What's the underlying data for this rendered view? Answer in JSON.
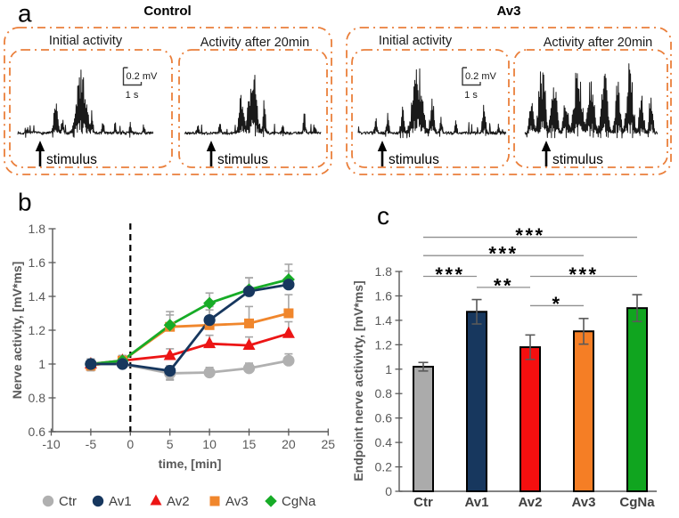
{
  "figure": {
    "background": "#ffffff",
    "panel_a": {
      "letter": "a",
      "box_color": "#EA7F3B",
      "trace_color": "#1a1a1a",
      "stimulus_label": "stimulus",
      "scalebar": {
        "v_label": "0.2 mV",
        "h_label": "1 s"
      },
      "groups": [
        {
          "title": "Control",
          "panels": [
            {
              "label": "Initial activity",
              "show_scalebar": true,
              "trace": {
                "seed": 7,
                "bursts": [
                  {
                    "c": 0.07,
                    "a": 0.1,
                    "w": 0.012
                  },
                  {
                    "c": 0.28,
                    "a": 0.42,
                    "w": 0.02
                  },
                  {
                    "c": 0.33,
                    "a": 0.3,
                    "w": 0.012
                  },
                  {
                    "c": 0.47,
                    "a": 1.0,
                    "w": 0.045
                  },
                  {
                    "c": 0.545,
                    "a": 0.34,
                    "w": 0.012
                  },
                  {
                    "c": 0.63,
                    "a": 0.22,
                    "w": 0.01
                  },
                  {
                    "c": 0.72,
                    "a": 0.16,
                    "w": 0.01
                  },
                  {
                    "c": 0.83,
                    "a": 0.18,
                    "w": 0.01
                  },
                  {
                    "c": 0.93,
                    "a": 0.16,
                    "w": 0.009
                  }
                ]
              }
            },
            {
              "label": "Activity after 20min",
              "show_scalebar": false,
              "trace": {
                "seed": 21,
                "bursts": [
                  {
                    "c": 0.1,
                    "a": 0.12,
                    "w": 0.01
                  },
                  {
                    "c": 0.26,
                    "a": 0.16,
                    "w": 0.01
                  },
                  {
                    "c": 0.42,
                    "a": 0.62,
                    "w": 0.025
                  },
                  {
                    "c": 0.5,
                    "a": 1.0,
                    "w": 0.038
                  },
                  {
                    "c": 0.585,
                    "a": 0.45,
                    "w": 0.014
                  },
                  {
                    "c": 0.72,
                    "a": 0.16,
                    "w": 0.01
                  },
                  {
                    "c": 0.88,
                    "a": 0.28,
                    "w": 0.012
                  },
                  {
                    "c": 0.96,
                    "a": 0.12,
                    "w": 0.008
                  }
                ]
              }
            }
          ]
        },
        {
          "title": "Av3",
          "panels": [
            {
              "label": "Initial activity",
              "show_scalebar": true,
              "trace": {
                "seed": 33,
                "bursts": [
                  {
                    "c": 0.12,
                    "a": 0.22,
                    "w": 0.012
                  },
                  {
                    "c": 0.2,
                    "a": 0.28,
                    "w": 0.012
                  },
                  {
                    "c": 0.3,
                    "a": 0.36,
                    "w": 0.015
                  },
                  {
                    "c": 0.4,
                    "a": 1.0,
                    "w": 0.042
                  },
                  {
                    "c": 0.5,
                    "a": 0.48,
                    "w": 0.018
                  },
                  {
                    "c": 0.56,
                    "a": 0.28,
                    "w": 0.012
                  },
                  {
                    "c": 0.66,
                    "a": 0.2,
                    "w": 0.01
                  },
                  {
                    "c": 0.85,
                    "a": 0.42,
                    "w": 0.014
                  },
                  {
                    "c": 0.95,
                    "a": 0.14,
                    "w": 0.008
                  }
                ]
              }
            },
            {
              "label": "Activity after 20min",
              "show_scalebar": false,
              "trace": {
                "seed": 55,
                "bursts": [
                  {
                    "c": 0.05,
                    "a": 0.52,
                    "w": 0.022
                  },
                  {
                    "c": 0.13,
                    "a": 0.95,
                    "w": 0.034
                  },
                  {
                    "c": 0.22,
                    "a": 0.74,
                    "w": 0.03
                  },
                  {
                    "c": 0.31,
                    "a": 0.58,
                    "w": 0.024
                  },
                  {
                    "c": 0.4,
                    "a": 1.0,
                    "w": 0.038
                  },
                  {
                    "c": 0.5,
                    "a": 0.8,
                    "w": 0.032
                  },
                  {
                    "c": 0.6,
                    "a": 0.85,
                    "w": 0.032
                  },
                  {
                    "c": 0.7,
                    "a": 0.7,
                    "w": 0.026
                  },
                  {
                    "c": 0.79,
                    "a": 0.95,
                    "w": 0.032
                  },
                  {
                    "c": 0.88,
                    "a": 0.58,
                    "w": 0.022
                  },
                  {
                    "c": 0.95,
                    "a": 0.62,
                    "w": 0.018
                  }
                ]
              }
            }
          ]
        }
      ]
    }
  },
  "chart_data": [
    {
      "id": "b",
      "type": "line",
      "panel_label": "b",
      "xlabel": "time, [min]",
      "ylabel": "Nerve activity, [mV*ms]",
      "xlim": [
        -10,
        25
      ],
      "ylim": [
        0.6,
        1.8
      ],
      "xticks": [
        -10,
        -5,
        0,
        5,
        10,
        15,
        20,
        25
      ],
      "xtick_labels": [
        "-10",
        "-5",
        "0",
        "5",
        "10",
        "15",
        "20",
        "25"
      ],
      "yticks": [
        0.6,
        0.8,
        1.0,
        1.2,
        1.4,
        1.6,
        1.8
      ],
      "ytick_labels": [
        "0.6",
        "0.8",
        "1",
        "1.2",
        "1.4",
        "1.6",
        "1.8"
      ],
      "vline_x": 0,
      "grid": false,
      "legend_position": "bottom",
      "x": [
        -5,
        -1,
        5,
        10,
        15,
        20
      ],
      "series": [
        {
          "name": "Av3",
          "marker": "square",
          "color": "#F0862C",
          "values": [
            0.99,
            1.02,
            1.22,
            1.23,
            1.24,
            1.3
          ],
          "err_up": [
            0.04,
            0.03,
            0.07,
            0.09,
            0.1,
            0.11
          ],
          "err_down": [
            0.03,
            0.02,
            0.02,
            0.02,
            0.02,
            0.02
          ]
        },
        {
          "name": "Av2",
          "marker": "triangle",
          "color": "#EC1515",
          "values": [
            1.0,
            1.02,
            1.05,
            1.12,
            1.11,
            1.18
          ],
          "err_up": [
            0.03,
            0.03,
            0.04,
            0.05,
            0.05,
            0.07
          ],
          "err_down": [
            0.02,
            0.02,
            0.02,
            0.02,
            0.02,
            0.02
          ]
        },
        {
          "name": "CgNa",
          "marker": "diamond",
          "color": "#17AC27",
          "values": [
            1.0,
            1.02,
            1.23,
            1.36,
            1.44,
            1.5
          ],
          "err_up": [
            0.03,
            0.03,
            0.08,
            0.06,
            0.07,
            0.09
          ],
          "err_down": [
            0.02,
            0.02,
            0.02,
            0.02,
            0.02,
            0.02
          ]
        },
        {
          "name": "Ctr",
          "marker": "circle",
          "color": "#B0B0B0",
          "values": [
            1.0,
            1.0,
            0.945,
            0.95,
            0.975,
            1.02
          ],
          "err_up": [
            0.03,
            0.02,
            0.02,
            0.03,
            0.03,
            0.04
          ],
          "err_down": [
            0.02,
            0.02,
            0.04,
            0.02,
            0.02,
            0.02
          ]
        },
        {
          "name": "Av1",
          "marker": "circle",
          "color": "#17375E",
          "values": [
            1.0,
            1.0,
            0.96,
            1.26,
            1.43,
            1.47
          ],
          "err_up": [
            0.03,
            0.02,
            0.03,
            0.08,
            0.08,
            0.08
          ],
          "err_down": [
            0.02,
            0.02,
            0.05,
            0.02,
            0.02,
            0.02
          ]
        }
      ],
      "legend_order": [
        "Ctr",
        "Av1",
        "Av2",
        "Av3",
        "CgNa"
      ],
      "style": {
        "axis_color": "#595959",
        "tick_label_color": "#595959",
        "axis_title_color": "#595959",
        "error_bar_color": "#A6A6A6",
        "legend_text_color": "#3F3F3F",
        "vline_color": "#000000"
      }
    },
    {
      "id": "c",
      "type": "bar",
      "panel_label": "c",
      "ylabel": "Endpoint nerve activivty, [mV*ms]",
      "ylim": [
        0,
        1.8
      ],
      "yticks": [
        0,
        0.2,
        0.4,
        0.6,
        0.8,
        1.0,
        1.2,
        1.4,
        1.6,
        1.8
      ],
      "ytick_labels": [
        "0",
        "0.2",
        "0.4",
        "0.6",
        "0.8",
        "1",
        "1.2",
        "1.4",
        "1.6",
        "1.8"
      ],
      "categories": [
        "Ctr",
        "Av1",
        "Av2",
        "Av3",
        "CgNa"
      ],
      "values": [
        1.02,
        1.47,
        1.18,
        1.31,
        1.5
      ],
      "errors": [
        0.035,
        0.1,
        0.1,
        0.105,
        0.11
      ],
      "bar_colors": [
        "#ABABAB",
        "#17375E",
        "#F50F0F",
        "#F57E25",
        "#10A51F"
      ],
      "bar_border_color": "#000000",
      "significance": [
        {
          "a": 0,
          "b": 4,
          "label": "***",
          "y": 2.08
        },
        {
          "a": 0,
          "b": 3,
          "label": "***",
          "y": 1.93
        },
        {
          "a": 0,
          "b": 1,
          "label": "***",
          "y": 1.76
        },
        {
          "a": 2,
          "b": 4,
          "label": "***",
          "y": 1.76
        },
        {
          "a": 1,
          "b": 2,
          "label": "**",
          "y": 1.67
        },
        {
          "a": 2,
          "b": 3,
          "label": "*",
          "y": 1.52
        }
      ],
      "style": {
        "axis_color": "#595959",
        "tick_label_color": "#595959",
        "axis_title_color": "#595959",
        "error_bar_color": "#595959",
        "category_label_color": "#404040",
        "bracket_color": "#8F8F8F",
        "star_color": "#000000"
      }
    }
  ]
}
